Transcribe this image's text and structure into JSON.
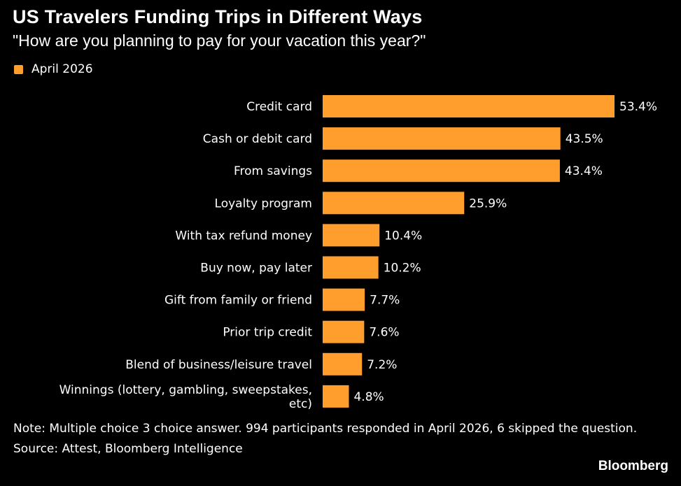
{
  "chart_data": {
    "type": "bar",
    "orientation": "horizontal",
    "title": "US Travelers Funding Trips in Different Ways",
    "subtitle": "\"How are you planning to pay for your vacation this year?\"",
    "categories": [
      "Credit card",
      "Cash or debit card",
      "From savings",
      "Loyalty program",
      "With tax refund money",
      "Buy now, pay later",
      "Gift from family or friend",
      "Prior trip credit",
      "Blend of business/leisure travel",
      "Winnings (lottery, gambling, sweepstakes, etc)"
    ],
    "category_lines": [
      [
        "Credit card"
      ],
      [
        "Cash or debit card"
      ],
      [
        "From savings"
      ],
      [
        "Loyalty program"
      ],
      [
        "With tax refund money"
      ],
      [
        "Buy now, pay later"
      ],
      [
        "Gift from family or friend"
      ],
      [
        "Prior trip credit"
      ],
      [
        "Blend of business/leisure travel"
      ],
      [
        "Winnings (lottery, gambling, sweepstakes,",
        "etc)"
      ]
    ],
    "series": [
      {
        "name": "April 2026",
        "color": "#ff9e2d",
        "values": [
          53.4,
          43.5,
          43.4,
          25.9,
          10.4,
          10.2,
          7.7,
          7.6,
          7.2,
          4.8
        ]
      }
    ],
    "value_labels": [
      "53.4%",
      "43.5%",
      "43.4%",
      "25.9%",
      "10.4%",
      "10.2%",
      "7.7%",
      "7.6%",
      "7.2%",
      "4.8%"
    ],
    "value_unit": "%",
    "xlim": [
      0,
      53.4
    ],
    "grid": false,
    "legend_position": "top-left"
  },
  "note": "Note: Multiple choice 3 choice answer. 994 participants responded in April 2026, 6 skipped the question.",
  "source": "Source: Attest, Bloomberg Intelligence",
  "brand": "Bloomberg",
  "colors": {
    "background": "#000000",
    "text": "#ffffff",
    "bar": "#ff9e2d"
  }
}
